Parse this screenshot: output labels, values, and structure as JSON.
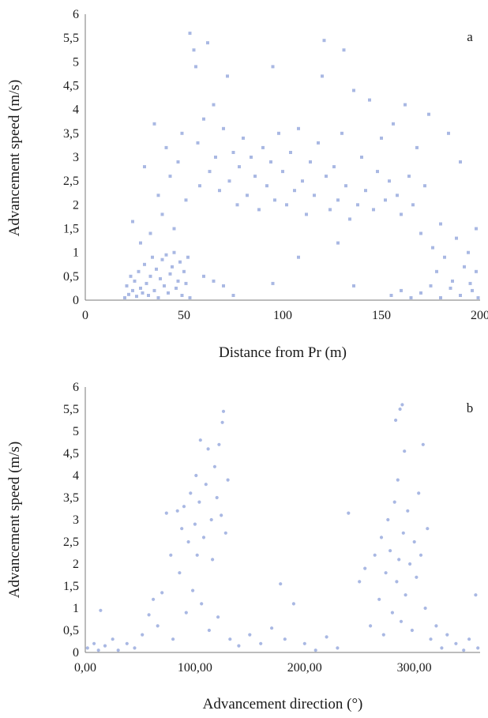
{
  "chart_data": [
    {
      "type": "scatter",
      "panel_label": "a",
      "xlabel": "Distance from  Pr (m)",
      "ylabel": "Advancement speed (m/s)",
      "xlim": [
        0,
        200
      ],
      "ylim": [
        0,
        6
      ],
      "x_ticks": [
        "0",
        "50",
        "100",
        "150",
        "200"
      ],
      "y_ticks": [
        "0",
        "0,5",
        "1",
        "1,5",
        "2",
        "2,5",
        "3",
        "3,5",
        "4",
        "4,5",
        "5",
        "5,5",
        "6"
      ],
      "grid": false,
      "legend": "none",
      "marker_color": "#a9b8e3",
      "marker": "square",
      "series": [
        {
          "values": [
            [
              20,
              0.05
            ],
            [
              21,
              0.3
            ],
            [
              22,
              0.12
            ],
            [
              23,
              0.5
            ],
            [
              24,
              0.2
            ],
            [
              25,
              0.4
            ],
            [
              26,
              0.08
            ],
            [
              27,
              0.6
            ],
            [
              28,
              0.25
            ],
            [
              29,
              0.15
            ],
            [
              30,
              0.75
            ],
            [
              31,
              0.35
            ],
            [
              32,
              0.1
            ],
            [
              33,
              0.5
            ],
            [
              34,
              0.9
            ],
            [
              35,
              0.2
            ],
            [
              36,
              0.65
            ],
            [
              37,
              0.05
            ],
            [
              38,
              0.45
            ],
            [
              39,
              0.85
            ],
            [
              40,
              0.3
            ],
            [
              41,
              0.95
            ],
            [
              42,
              0.15
            ],
            [
              43,
              0.55
            ],
            [
              44,
              0.7
            ],
            [
              45,
              1.0
            ],
            [
              46,
              0.25
            ],
            [
              47,
              0.4
            ],
            [
              48,
              0.8
            ],
            [
              49,
              0.1
            ],
            [
              50,
              0.6
            ],
            [
              51,
              0.35
            ],
            [
              52,
              0.9
            ],
            [
              53,
              0.05
            ],
            [
              24,
              1.65
            ],
            [
              28,
              1.2
            ],
            [
              30,
              2.8
            ],
            [
              33,
              1.4
            ],
            [
              35,
              3.7
            ],
            [
              37,
              2.2
            ],
            [
              39,
              1.8
            ],
            [
              41,
              3.2
            ],
            [
              43,
              2.6
            ],
            [
              45,
              1.5
            ],
            [
              47,
              2.9
            ],
            [
              49,
              3.5
            ],
            [
              51,
              2.1
            ],
            [
              53,
              5.6
            ],
            [
              55,
              5.25
            ],
            [
              56,
              4.9
            ],
            [
              57,
              3.3
            ],
            [
              58,
              2.4
            ],
            [
              60,
              3.8
            ],
            [
              62,
              5.4
            ],
            [
              63,
              2.7
            ],
            [
              65,
              4.1
            ],
            [
              66,
              3.0
            ],
            [
              68,
              2.3
            ],
            [
              70,
              3.6
            ],
            [
              72,
              4.7
            ],
            [
              73,
              2.5
            ],
            [
              75,
              3.1
            ],
            [
              77,
              2.0
            ],
            [
              78,
              2.8
            ],
            [
              80,
              3.4
            ],
            [
              82,
              2.2
            ],
            [
              84,
              3.0
            ],
            [
              86,
              2.6
            ],
            [
              88,
              1.9
            ],
            [
              90,
              3.2
            ],
            [
              92,
              2.4
            ],
            [
              94,
              2.9
            ],
            [
              95,
              4.9
            ],
            [
              96,
              2.1
            ],
            [
              98,
              3.5
            ],
            [
              100,
              2.7
            ],
            [
              102,
              2.0
            ],
            [
              104,
              3.1
            ],
            [
              106,
              2.3
            ],
            [
              108,
              3.6
            ],
            [
              110,
              2.5
            ],
            [
              112,
              1.8
            ],
            [
              114,
              2.9
            ],
            [
              116,
              2.2
            ],
            [
              118,
              3.3
            ],
            [
              120,
              4.7
            ],
            [
              121,
              5.45
            ],
            [
              122,
              2.6
            ],
            [
              124,
              1.9
            ],
            [
              126,
              2.8
            ],
            [
              128,
              2.1
            ],
            [
              130,
              3.5
            ],
            [
              131,
              5.25
            ],
            [
              132,
              2.4
            ],
            [
              134,
              1.7
            ],
            [
              136,
              4.4
            ],
            [
              138,
              2.0
            ],
            [
              140,
              3.0
            ],
            [
              142,
              2.3
            ],
            [
              144,
              4.2
            ],
            [
              146,
              1.9
            ],
            [
              148,
              2.7
            ],
            [
              150,
              3.4
            ],
            [
              152,
              2.1
            ],
            [
              154,
              2.5
            ],
            [
              156,
              3.7
            ],
            [
              158,
              2.2
            ],
            [
              160,
              1.8
            ],
            [
              162,
              4.1
            ],
            [
              164,
              2.6
            ],
            [
              166,
              2.0
            ],
            [
              168,
              3.2
            ],
            [
              170,
              1.4
            ],
            [
              172,
              2.4
            ],
            [
              174,
              3.9
            ],
            [
              176,
              1.1
            ],
            [
              178,
              0.6
            ],
            [
              180,
              1.6
            ],
            [
              182,
              0.9
            ],
            [
              184,
              3.5
            ],
            [
              186,
              0.4
            ],
            [
              188,
              1.3
            ],
            [
              190,
              2.9
            ],
            [
              192,
              0.7
            ],
            [
              194,
              1.0
            ],
            [
              196,
              0.2
            ],
            [
              198,
              1.5
            ],
            [
              199,
              0.05
            ],
            [
              95,
              0.35
            ],
            [
              108,
              0.9
            ],
            [
              128,
              1.2
            ],
            [
              136,
              0.3
            ],
            [
              60,
              0.5
            ],
            [
              65,
              0.4
            ],
            [
              70,
              0.3
            ],
            [
              75,
              0.1
            ],
            [
              155,
              0.1
            ],
            [
              160,
              0.2
            ],
            [
              165,
              0.05
            ],
            [
              170,
              0.15
            ],
            [
              175,
              0.3
            ],
            [
              180,
              0.05
            ],
            [
              185,
              0.25
            ],
            [
              190,
              0.1
            ],
            [
              195,
              0.35
            ],
            [
              198,
              0.6
            ]
          ]
        }
      ]
    },
    {
      "type": "scatter",
      "panel_label": "b",
      "xlabel": "Advancement direction (°)",
      "ylabel": "Advancement speed (m/s)",
      "xlim": [
        0,
        360
      ],
      "ylim": [
        0,
        6
      ],
      "x_ticks": [
        "0,00",
        "100,00",
        "200,00",
        "300,00"
      ],
      "y_ticks": [
        "0",
        "0,5",
        "1",
        "1,5",
        "2",
        "2,5",
        "3",
        "3,5",
        "4",
        "4,5",
        "5",
        "5,5",
        "6"
      ],
      "grid": false,
      "legend": "none",
      "marker_color": "#a9b8e3",
      "marker": "circle",
      "series": [
        {
          "values": [
            [
              2,
              0.1
            ],
            [
              8,
              0.2
            ],
            [
              12,
              0.05
            ],
            [
              14,
              0.95
            ],
            [
              18,
              0.15
            ],
            [
              25,
              0.3
            ],
            [
              30,
              0.05
            ],
            [
              38,
              0.2
            ],
            [
              45,
              0.1
            ],
            [
              52,
              0.4
            ],
            [
              58,
              0.85
            ],
            [
              62,
              1.2
            ],
            [
              66,
              0.6
            ],
            [
              70,
              1.35
            ],
            [
              74,
              3.15
            ],
            [
              78,
              2.2
            ],
            [
              80,
              0.3
            ],
            [
              84,
              3.2
            ],
            [
              86,
              1.8
            ],
            [
              88,
              2.8
            ],
            [
              90,
              3.3
            ],
            [
              92,
              0.9
            ],
            [
              94,
              2.5
            ],
            [
              96,
              3.6
            ],
            [
              98,
              1.4
            ],
            [
              100,
              2.9
            ],
            [
              101,
              4.0
            ],
            [
              102,
              2.2
            ],
            [
              104,
              3.4
            ],
            [
              105,
              4.8
            ],
            [
              106,
              1.1
            ],
            [
              108,
              2.6
            ],
            [
              110,
              3.8
            ],
            [
              112,
              4.6
            ],
            [
              113,
              0.5
            ],
            [
              115,
              3.0
            ],
            [
              116,
              2.1
            ],
            [
              118,
              4.2
            ],
            [
              120,
              3.5
            ],
            [
              121,
              0.8
            ],
            [
              122,
              4.7
            ],
            [
              124,
              3.1
            ],
            [
              125,
              5.2
            ],
            [
              126,
              5.45
            ],
            [
              128,
              2.7
            ],
            [
              130,
              3.9
            ],
            [
              132,
              0.3
            ],
            [
              140,
              0.15
            ],
            [
              150,
              0.4
            ],
            [
              160,
              0.2
            ],
            [
              170,
              0.55
            ],
            [
              178,
              1.55
            ],
            [
              182,
              0.3
            ],
            [
              190,
              1.1
            ],
            [
              200,
              0.2
            ],
            [
              210,
              0.05
            ],
            [
              220,
              0.35
            ],
            [
              230,
              0.1
            ],
            [
              240,
              3.15
            ],
            [
              250,
              1.6
            ],
            [
              255,
              1.9
            ],
            [
              260,
              0.6
            ],
            [
              264,
              2.2
            ],
            [
              268,
              1.2
            ],
            [
              270,
              2.6
            ],
            [
              272,
              0.4
            ],
            [
              274,
              1.8
            ],
            [
              276,
              3.0
            ],
            [
              278,
              2.3
            ],
            [
              280,
              0.9
            ],
            [
              282,
              3.4
            ],
            [
              283,
              5.25
            ],
            [
              284,
              1.6
            ],
            [
              285,
              3.9
            ],
            [
              286,
              2.1
            ],
            [
              287,
              5.5
            ],
            [
              288,
              0.7
            ],
            [
              289,
              5.6
            ],
            [
              290,
              2.7
            ],
            [
              291,
              4.55
            ],
            [
              292,
              1.3
            ],
            [
              294,
              3.2
            ],
            [
              296,
              2.0
            ],
            [
              298,
              0.5
            ],
            [
              300,
              2.5
            ],
            [
              302,
              1.7
            ],
            [
              304,
              3.6
            ],
            [
              306,
              2.2
            ],
            [
              308,
              4.7
            ],
            [
              310,
              1.0
            ],
            [
              312,
              2.8
            ],
            [
              315,
              0.3
            ],
            [
              320,
              0.6
            ],
            [
              325,
              0.1
            ],
            [
              330,
              0.4
            ],
            [
              338,
              0.2
            ],
            [
              345,
              0.05
            ],
            [
              350,
              0.3
            ],
            [
              356,
              1.3
            ],
            [
              358,
              0.1
            ]
          ]
        }
      ]
    }
  ]
}
